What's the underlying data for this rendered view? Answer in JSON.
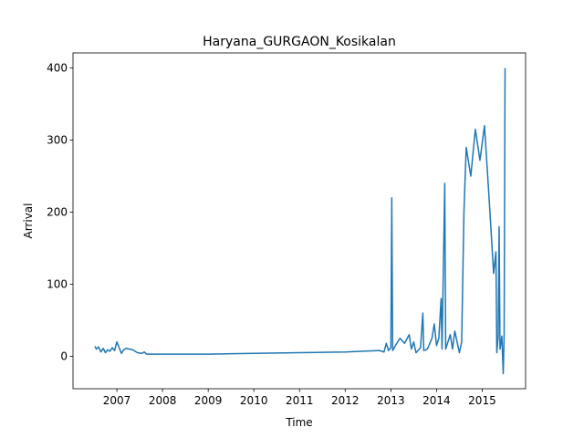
{
  "chart_data": {
    "type": "line",
    "title": "Haryana_GURGAON_Kosikalan",
    "x_label": "Time",
    "y_label": "Arrival",
    "x": [
      2006.52,
      2006.55,
      2006.6,
      2006.65,
      2006.7,
      2006.75,
      2006.8,
      2006.85,
      2006.9,
      2006.95,
      2007.0,
      2007.05,
      2007.1,
      2007.15,
      2007.2,
      2007.35,
      2007.45,
      2007.55,
      2007.6,
      2007.65,
      2008.0,
      2009.0,
      2010.0,
      2011.0,
      2012.0,
      2012.75,
      2012.85,
      2012.9,
      2012.95,
      2013.0,
      2013.02,
      2013.04,
      2013.1,
      2013.2,
      2013.3,
      2013.4,
      2013.45,
      2013.5,
      2013.55,
      2013.65,
      2013.7,
      2013.72,
      2013.8,
      2013.9,
      2013.95,
      2014.0,
      2014.05,
      2014.1,
      2014.12,
      2014.18,
      2014.2,
      2014.3,
      2014.35,
      2014.4,
      2014.45,
      2014.5,
      2014.55,
      2014.6,
      2014.65,
      2014.75,
      2014.85,
      2014.95,
      2015.05,
      2015.15,
      2015.25,
      2015.3,
      2015.32,
      2015.35,
      2015.37,
      2015.39,
      2015.43,
      2015.46,
      2015.48,
      2015.5
    ],
    "series": [
      {
        "color": "#1f77b4",
        "values": [
          14,
          10,
          13,
          6,
          11,
          5,
          9,
          7,
          12,
          8,
          20,
          12,
          4,
          9,
          11,
          9,
          5,
          4,
          6,
          3,
          3,
          3,
          4,
          5,
          6,
          8,
          6,
          18,
          8,
          12,
          220,
          8,
          15,
          25,
          18,
          30,
          10,
          20,
          5,
          12,
          60,
          8,
          10,
          25,
          45,
          15,
          25,
          80,
          10,
          240,
          10,
          30,
          10,
          35,
          20,
          5,
          20,
          200,
          290,
          250,
          315,
          272,
          320,
          220,
          115,
          145,
          5,
          28,
          180,
          10,
          28,
          -24,
          30,
          400
        ]
      }
    ],
    "xlim": [
      2006.04,
      2015.95
    ],
    "ylim": [
      -45,
      421
    ],
    "xticks": [
      2007,
      2008,
      2009,
      2010,
      2011,
      2012,
      2013,
      2014,
      2015
    ],
    "yticks": [
      0,
      100,
      200,
      300,
      400
    ]
  }
}
